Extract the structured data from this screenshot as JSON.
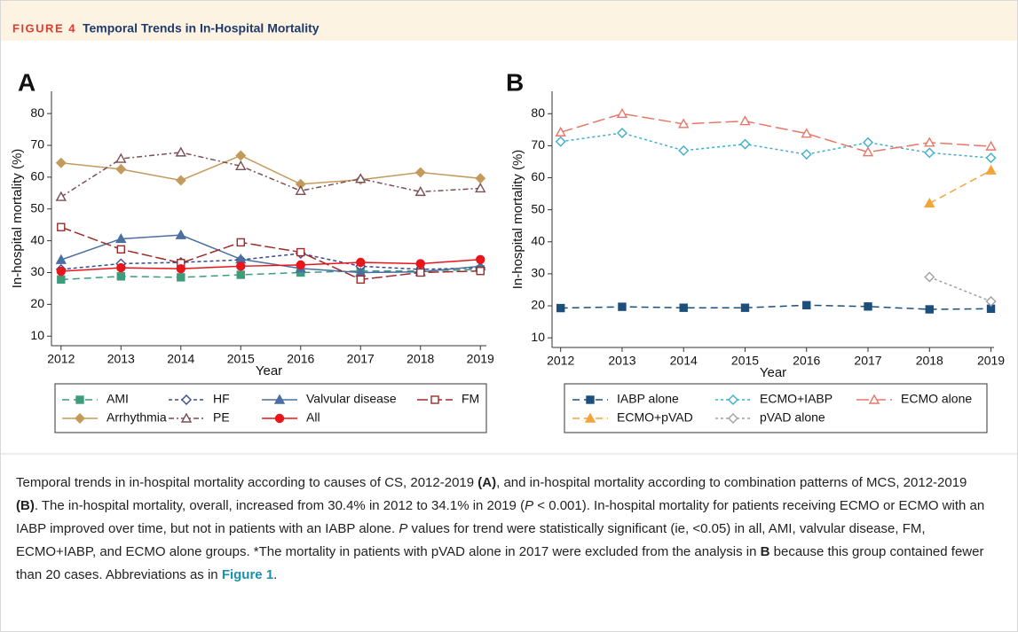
{
  "header": {
    "figure": "FIGURE 4",
    "title": "Temporal Trends in In-Hospital Mortality"
  },
  "chart_data": [
    {
      "type": "line",
      "panel": "A",
      "ylabel": "In-hospital mortality (%)",
      "xlabel": "Year",
      "x": [
        2012,
        2013,
        2014,
        2015,
        2016,
        2017,
        2018,
        2019
      ],
      "xlim": [
        2011.84,
        2019.1
      ],
      "xticks": [
        2012,
        2013,
        2014,
        2015,
        2016,
        2017,
        2018,
        2019
      ],
      "ylim": [
        7,
        87
      ],
      "yticks": [
        10,
        20,
        30,
        40,
        50,
        60,
        70,
        80
      ],
      "grid": false,
      "series": [
        {
          "name": "AMI",
          "color": "#3d9c7c",
          "marker": "square",
          "filled": true,
          "dash": "8 5",
          "values": [
            27.8,
            28.8,
            28.5,
            29.3,
            30.0,
            30.5,
            30.5,
            31.0
          ]
        },
        {
          "name": "HF",
          "color": "#3a4a8a",
          "marker": "diamond",
          "filled": false,
          "dash": "4 3",
          "values": [
            31.0,
            32.8,
            33.2,
            34.0,
            36.0,
            32.0,
            31.0,
            31.5
          ]
        },
        {
          "name": "Valvular disease",
          "color": "#4a6fa0",
          "marker": "triangle",
          "filled": true,
          "dash": "none",
          "values": [
            34.0,
            40.6,
            41.8,
            34.2,
            31.3,
            30.0,
            30.2,
            32.0
          ]
        },
        {
          "name": "FM",
          "color": "#9e2a2a",
          "marker": "square",
          "filled": false,
          "dash": "12 4",
          "values": [
            44.3,
            37.3,
            33.0,
            39.5,
            36.4,
            27.8,
            30.0,
            30.5
          ]
        },
        {
          "name": "Arrhythmia",
          "color": "#c49a5c",
          "marker": "diamond",
          "filled": true,
          "dash": "none",
          "values": [
            64.5,
            62.5,
            59.0,
            66.8,
            57.8,
            59.2,
            61.5,
            59.6
          ]
        },
        {
          "name": "PE",
          "color": "#7a4f55",
          "marker": "triangle",
          "filled": false,
          "dash": "6 3 2 3",
          "values": [
            53.8,
            65.8,
            67.8,
            63.5,
            55.7,
            59.5,
            55.4,
            56.5
          ]
        },
        {
          "name": "All",
          "color": "#e8151b",
          "marker": "circle",
          "filled": true,
          "dash": "none",
          "values": [
            30.4,
            31.5,
            31.2,
            32.0,
            32.4,
            33.2,
            32.8,
            34.1
          ]
        }
      ]
    },
    {
      "type": "line",
      "panel": "B",
      "ylabel": "In-hospital mortality (%)",
      "xlabel": "Year",
      "x": [
        2012,
        2013,
        2014,
        2015,
        2016,
        2017,
        2018,
        2019
      ],
      "xlim": [
        2011.86,
        2019.05
      ],
      "xticks": [
        2012,
        2013,
        2014,
        2015,
        2016,
        2017,
        2018,
        2019
      ],
      "ylim": [
        7,
        87
      ],
      "yticks": [
        10,
        20,
        30,
        40,
        50,
        60,
        70,
        80
      ],
      "grid": false,
      "series": [
        {
          "name": "IABP alone",
          "color": "#1c4f7c",
          "marker": "square",
          "filled": true,
          "dash": "8 5",
          "values": [
            19.3,
            19.7,
            19.4,
            19.4,
            20.2,
            19.8,
            18.9,
            19.1
          ]
        },
        {
          "name": "ECMO+IABP",
          "color": "#3fb0c8",
          "marker": "diamond",
          "filled": false,
          "dash": "3 3",
          "values": [
            71.3,
            74.0,
            68.5,
            70.5,
            67.3,
            71.0,
            67.8,
            66.2
          ]
        },
        {
          "name": "ECMO alone",
          "color": "#e8776a",
          "marker": "triangle",
          "filled": false,
          "dash": "14 5",
          "values": [
            74.2,
            80.0,
            76.8,
            77.7,
            73.8,
            68.0,
            71.0,
            69.8
          ]
        },
        {
          "name": "ECMO+pVAD",
          "color": "#f3a43a",
          "marker": "triangle",
          "filled": true,
          "dash": "8 5",
          "values": [
            null,
            null,
            null,
            null,
            null,
            null,
            52.0,
            62.3
          ]
        },
        {
          "name": "pVAD alone",
          "color": "#a0a0a0",
          "marker": "diamond",
          "filled": false,
          "dash": "3 3",
          "values": [
            null,
            null,
            null,
            null,
            null,
            null,
            29.0,
            21.4
          ]
        }
      ]
    }
  ],
  "caption": [
    "Temporal trends in in-hospital mortality according to causes of CS, 2012-2019 ",
    "(A)",
    ", and in-hospital mortality according to combination patterns of MCS, 2012-2019 ",
    "(B)",
    ". The in-hospital mortality, overall, increased from 30.4% in 2012 to 34.1% in 2019 (",
    "P",
    " < 0.001). In-hospital mortality for patients receiving ECMO or ECMO with an IABP improved over time, but not in patients with an IABP alone. ",
    "P",
    " values for trend were statistically significant (ie, <0.05) in all, AMI, valvular disease, FM, ECMO+IABP, and ECMO alone groups. *The mortality in patients with pVAD alone in 2017 were excluded from the analysis in ",
    "B",
    " because this group contained fewer than 20 cases. Abbreviations as in ",
    "Figure 1",
    "."
  ]
}
